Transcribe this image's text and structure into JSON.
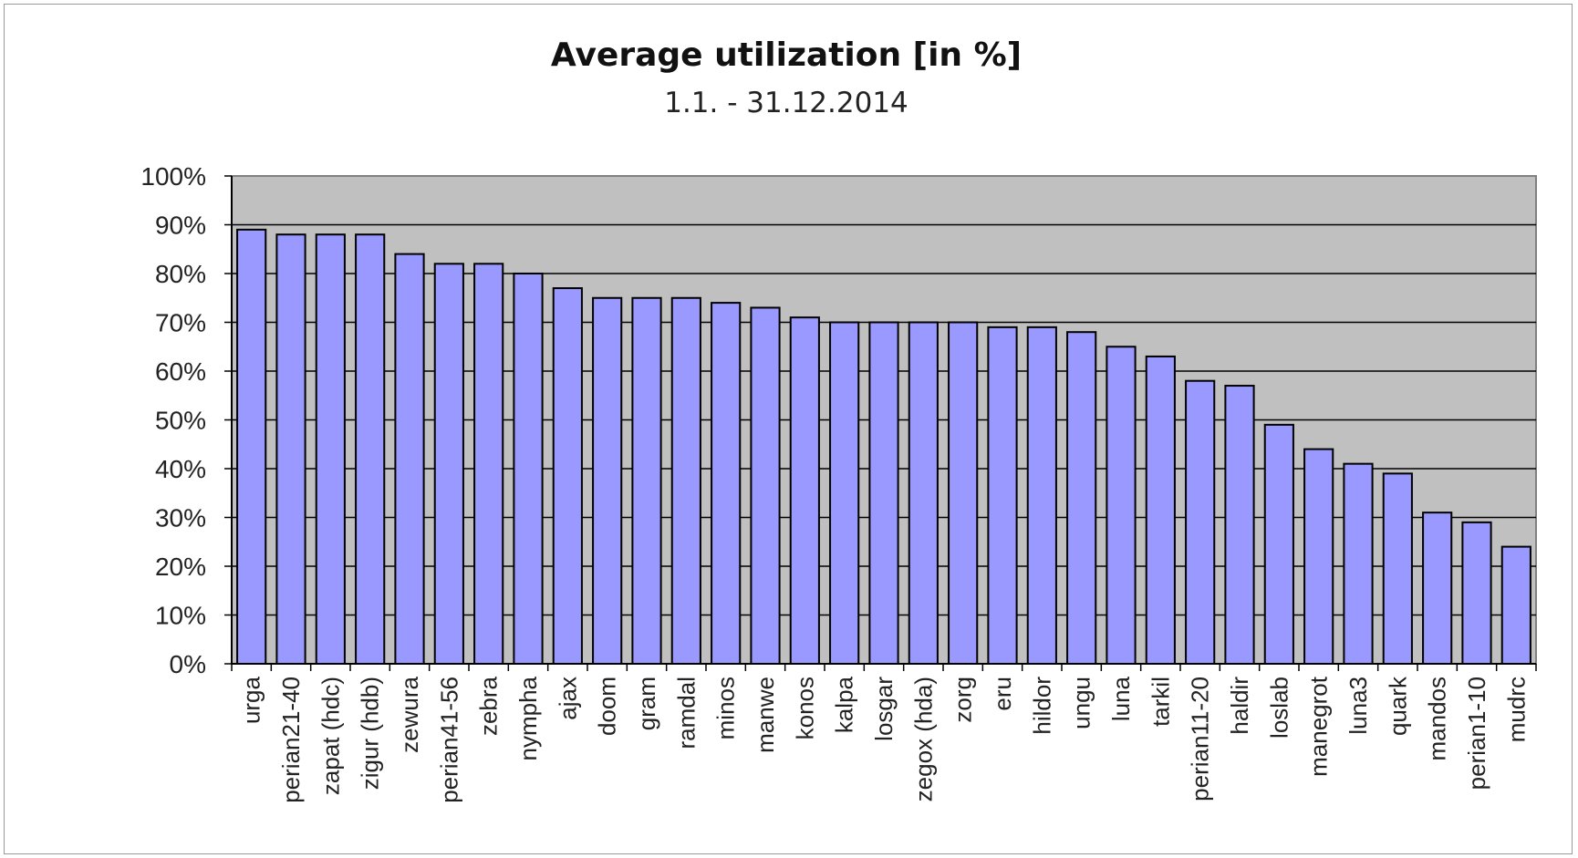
{
  "chart_data": {
    "type": "bar",
    "title": "Average utilization [in %]",
    "subtitle": "1.1. - 31.12.2014",
    "xlabel": "",
    "ylabel": "",
    "ylim": [
      0,
      100
    ],
    "yticks": [
      0,
      10,
      20,
      30,
      40,
      50,
      60,
      70,
      80,
      90,
      100
    ],
    "ytick_labels": [
      "0%",
      "10%",
      "20%",
      "30%",
      "40%",
      "50%",
      "60%",
      "70%",
      "80%",
      "90%",
      "100%"
    ],
    "grid": true,
    "legend": "none",
    "categories": [
      "urga",
      "perian21-40",
      "zapat (hdc)",
      "zigur (hdb)",
      "zewura",
      "perian41-56",
      "zebra",
      "nympha",
      "ajax",
      "doom",
      "gram",
      "ramdal",
      "minos",
      "manwe",
      "konos",
      "kalpa",
      "losgar",
      "zegox (hda)",
      "zorg",
      "eru",
      "hildor",
      "ungu",
      "luna",
      "tarkil",
      "perian11-20",
      "haldir",
      "loslab",
      "manegrot",
      "luna3",
      "quark",
      "mandos",
      "perian1-10",
      "mudrc"
    ],
    "values": [
      89,
      88,
      88,
      88,
      84,
      82,
      82,
      80,
      77,
      75,
      75,
      75,
      74,
      73,
      71,
      70,
      70,
      70,
      70,
      69,
      69,
      68,
      65,
      63,
      58,
      57,
      49,
      44,
      41,
      39,
      31,
      29,
      24
    ],
    "colors": {
      "bar": "#9999ff",
      "bar_stroke": "#000000",
      "plot_bg": "#c0c0c0",
      "grid": "#000000"
    }
  }
}
